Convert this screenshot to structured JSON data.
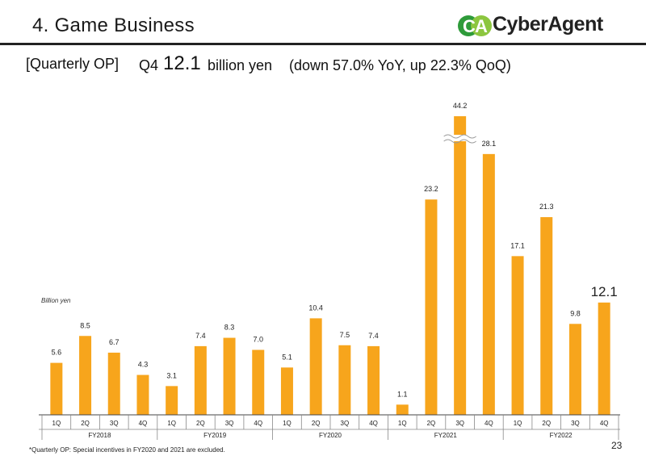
{
  "slide": {
    "title": "4. Game Business",
    "company": "CyberAgent",
    "page_number": "23",
    "footnote": "*Quarterly OP: Special incentives in FY2020 and 2021 are excluded."
  },
  "headline": {
    "label": "[Quarterly OP]",
    "quarter": "Q4",
    "value": "12.1",
    "unit": "billion yen",
    "detail": "(down 57.0% YoY, up 22.3% QoQ)"
  },
  "chart_data": {
    "type": "bar",
    "ylabel": "Billion yen",
    "categories": [
      "1Q",
      "2Q",
      "3Q",
      "4Q",
      "1Q",
      "2Q",
      "3Q",
      "4Q",
      "1Q",
      "2Q",
      "3Q",
      "4Q",
      "1Q",
      "2Q",
      "3Q",
      "4Q",
      "1Q",
      "2Q",
      "3Q",
      "4Q"
    ],
    "fiscal_years": [
      "FY2018",
      "FY2019",
      "FY2020",
      "FY2021",
      "FY2022"
    ],
    "values": [
      5.6,
      8.5,
      6.7,
      4.3,
      3.1,
      7.4,
      8.3,
      7.0,
      5.1,
      10.4,
      7.5,
      7.4,
      1.1,
      23.2,
      44.2,
      28.1,
      17.1,
      21.3,
      9.8,
      12.1
    ],
    "labels": [
      "5.6",
      "8.5",
      "6.7",
      "4.3",
      "3.1",
      "7.4",
      "8.3",
      "7.0",
      "5.1",
      "10.4",
      "7.5",
      "7.4",
      "1.1",
      "23.2",
      "44.2",
      "28.1",
      "17.1",
      "21.3",
      "9.8",
      "12.1"
    ],
    "axis_break": {
      "bar_index": 14,
      "note": "bar truncated with wavy break symbol"
    },
    "highlight_last": true,
    "grid": false,
    "bar_color": "#F7A51C"
  }
}
